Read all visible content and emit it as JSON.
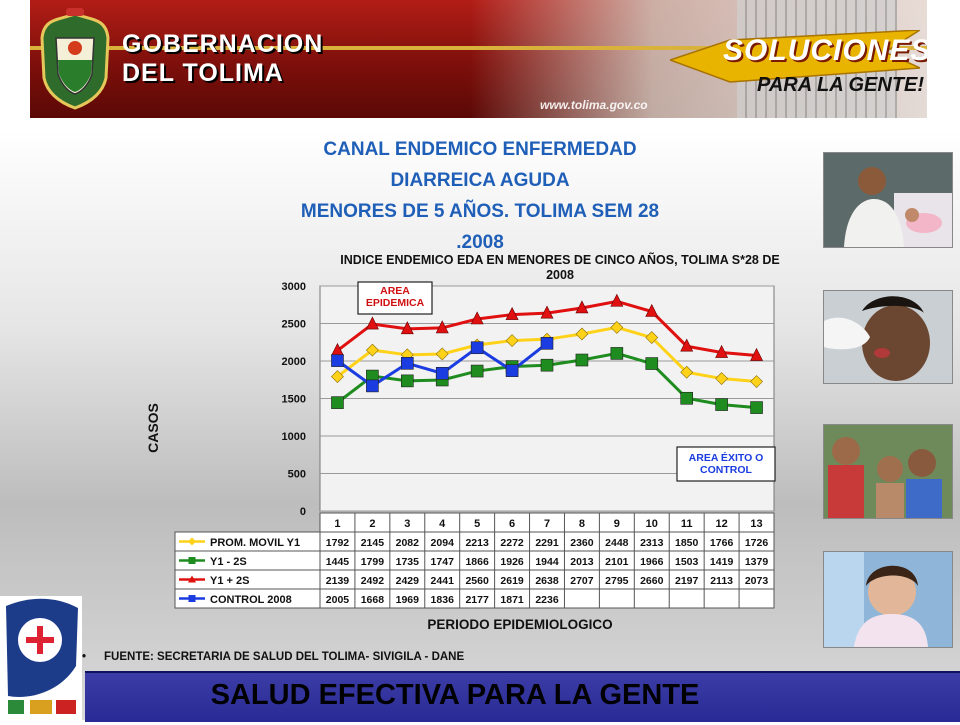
{
  "header": {
    "org_line1": "GOBERNACION",
    "org_line2": "DEL TOLIMA",
    "url": "www.tolima.gov.co",
    "slogan_main": "SOLUCIONES",
    "slogan_sub": "PARA LA GENTE!"
  },
  "slide": {
    "title_lines": [
      "CANAL ENDEMICO ENFERMEDAD",
      "DIARREICA AGUDA",
      "MENORES DE 5 AÑOS. TOLIMA SEM 28",
      ".2008"
    ],
    "source": "FUENTE: SECRETARIA DE SALUD DEL TOLIMA- SIVIGILA - DANE",
    "footer": "SALUD EFECTIVA PARA LA GENTE",
    "bullet": "•"
  },
  "colors": {
    "title_blue": "#1f5fb8",
    "prom": "#ffd21a",
    "y1minus": "#1e8c1e",
    "y1plus": "#e01010",
    "control": "#1a3ce0",
    "plot_bg": "#f2f2f2",
    "footer_blue": "#2a2a96"
  },
  "chart_data": {
    "type": "line",
    "title_line1": "INDICE ENDEMICO EDA  EN MENORES DE CINCO AÑOS, TOLIMA  S*28 DE",
    "title_line2": "2008",
    "xlabel": "PERIODO EPIDEMIOLOGICO",
    "ylabel": "CASOS",
    "ylim": [
      0,
      3000
    ],
    "yticks": [
      0,
      500,
      1000,
      1500,
      2000,
      2500,
      3000
    ],
    "grid": true,
    "categories": [
      "1",
      "2",
      "3",
      "4",
      "5",
      "6",
      "7",
      "8",
      "9",
      "10",
      "11",
      "12",
      "13"
    ],
    "series": [
      {
        "name": "PROM. MOVIL Y1",
        "color": "#ffd21a",
        "marker": "diamond",
        "values": [
          1792,
          2145,
          2082,
          2094,
          2213,
          2272,
          2291,
          2360,
          2448,
          2313,
          1850,
          1766,
          1726
        ]
      },
      {
        "name": "Y1 - 2S",
        "color": "#1e8c1e",
        "marker": "square",
        "values": [
          1445,
          1799,
          1735,
          1747,
          1866,
          1926,
          1944,
          2013,
          2101,
          1966,
          1503,
          1419,
          1379
        ]
      },
      {
        "name": "Y1 + 2S",
        "color": "#e01010",
        "marker": "triangle",
        "values": [
          2139,
          2492,
          2429,
          2441,
          2560,
          2619,
          2638,
          2707,
          2795,
          2660,
          2197,
          2113,
          2073
        ]
      },
      {
        "name": "CONTROL 2008",
        "color": "#1a3ce0",
        "marker": "square",
        "values": [
          2005,
          1668,
          1969,
          1836,
          2177,
          1871,
          2236,
          null,
          null,
          null,
          null,
          null,
          null
        ]
      }
    ],
    "annotations": [
      "AREA EPIDEMICA",
      "AREA ÉXITO O CONTROL"
    ]
  }
}
